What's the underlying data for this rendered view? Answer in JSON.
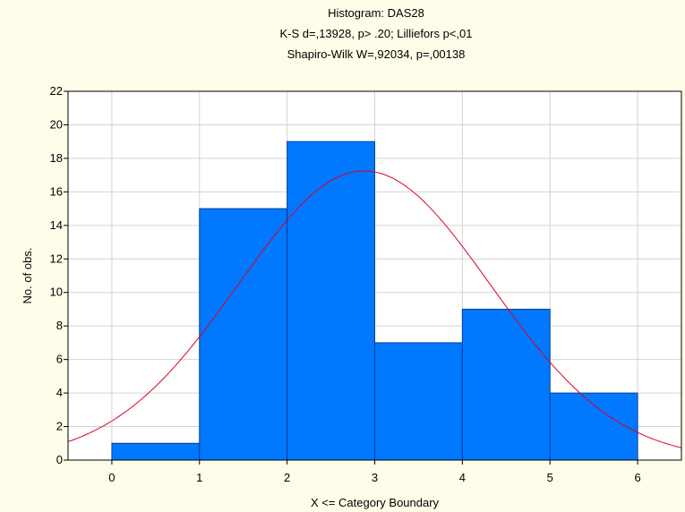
{
  "chart_data": {
    "type": "bar",
    "title": [
      "Histogram: DAS28",
      "K-S d=,13928, p> .20; Lilliefors p<,01",
      "Shapiro-Wilk W=,92034, p=,00138"
    ],
    "xlabel": "X <= Category Boundary",
    "ylabel": "No. of obs.",
    "bins": [
      {
        "from": 0,
        "to": 1,
        "value": 1
      },
      {
        "from": 1,
        "to": 2,
        "value": 15
      },
      {
        "from": 2,
        "to": 3,
        "value": 19
      },
      {
        "from": 3,
        "to": 4,
        "value": 7
      },
      {
        "from": 4,
        "to": 5,
        "value": 9
      },
      {
        "from": 5,
        "to": 6,
        "value": 4
      }
    ],
    "xticks": [
      0,
      1,
      2,
      3,
      4,
      5,
      6
    ],
    "yticks": [
      0,
      2,
      4,
      6,
      8,
      10,
      12,
      14,
      16,
      18,
      20,
      22
    ],
    "xlim": [
      -0.5,
      6.5
    ],
    "ylim": [
      0,
      22
    ],
    "grid": true,
    "normal_curve": {
      "mean": 2.88,
      "sd": 1.44,
      "peak": 17.25
    },
    "colors": {
      "bar": "#0078ff",
      "bar_edge": "#003e9a",
      "curve": "#e0001e",
      "grid": "#d4d4d4",
      "background": "#fdfde9",
      "plot_background": "#ffffff"
    }
  }
}
